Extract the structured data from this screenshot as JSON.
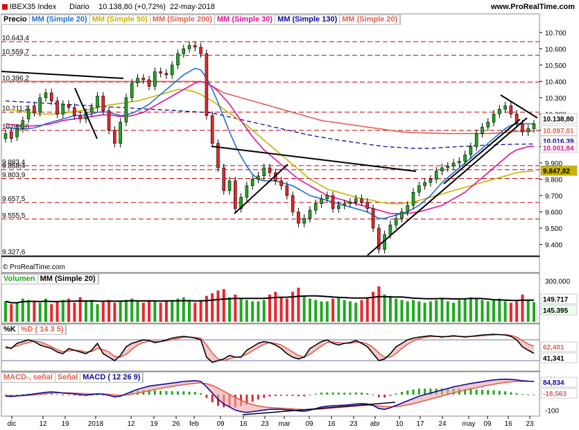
{
  "header": {
    "symbol": "IBEX35 Index",
    "period": "Diario",
    "last": "10.138,80 (+0,72%)",
    "date": "22-may-2018",
    "site": "www.ProRealTime.com"
  },
  "price_legend": [
    {
      "label": "Precio",
      "color": "#000000"
    },
    {
      "label": "MM (Simple 20)",
      "color": "#1f6fd6"
    },
    {
      "label": "MM (Simple 50)",
      "color": "#c8b400"
    },
    {
      "label": "MM (Simple 200)",
      "color": "#e06050"
    },
    {
      "label": "MM (Simple 30)",
      "color": "#e0109b"
    },
    {
      "label": "MM (Simple 130)",
      "color": "#0a0a9e"
    },
    {
      "label": "MM (Simple 20)",
      "color": "#e06050"
    }
  ],
  "vol_legend": [
    {
      "label": "Volumen",
      "color": "#1fa81f"
    },
    {
      "label": "MM (Simple 20)",
      "color": "#000000"
    }
  ],
  "sto_legend": [
    {
      "label": "%K",
      "color": "#000000"
    },
    {
      "label": "%D ( 14 3 5)",
      "color": "#e06050"
    }
  ],
  "macd_legend": [
    {
      "label": "MACD-, señal",
      "color": "#e06050"
    },
    {
      "label": "Señal",
      "color": "#e06050"
    },
    {
      "label": "MACD ( 12 26 9)",
      "color": "#0a0a9e"
    }
  ],
  "copyright": "© ProRealTime.com",
  "colors": {
    "up": "#1fa81f",
    "down": "#e8262b",
    "sma20": "#1f6fd6",
    "sma50": "#c8b400",
    "sma200": "#e06050",
    "sma30": "#e0109b",
    "sma130": "#0a0a9e",
    "grid": "#c00000"
  },
  "chart_data": {
    "type": "candlestick",
    "price_axis": {
      "ylim": [
        9300,
        10780
      ],
      "ticks": [
        "10.700",
        "10.600",
        "10.500",
        "10.400",
        "10.300",
        "10.200",
        "10.100",
        "10.000",
        "9.900",
        "9.800",
        "9.700",
        "9.600",
        "9.500",
        "9.400"
      ]
    },
    "level_labels": [
      "10.643,4",
      "10.559,7",
      "10.396,2",
      "10.211,2",
      "10.099,8",
      "9.883,4",
      "9.858,4",
      "9.803,9",
      "9.657,5",
      "9.555,5",
      "9.327,6"
    ],
    "tags": {
      "price": "10.138,80",
      "sma200": "10.097,01",
      "sma130": "10.016,39",
      "sma30": "10.001,84",
      "sma50": "9.847,82"
    },
    "x_labels": [
      "dic",
      "12",
      "19",
      "2018",
      "12",
      "19",
      "26",
      "feb",
      "09",
      "16",
      "23",
      "mar",
      "09",
      "16",
      "23",
      "abr",
      "10",
      "17",
      "24",
      "may",
      "09",
      "16",
      "23"
    ],
    "closes": [
      10080,
      10050,
      10110,
      10160,
      10230,
      10210,
      10300,
      10330,
      10280,
      10200,
      10260,
      10240,
      10190,
      10170,
      10210,
      10240,
      10310,
      10220,
      10100,
      10020,
      10150,
      10300,
      10390,
      10420,
      10410,
      10370,
      10460,
      10450,
      10440,
      10500,
      10570,
      10600,
      10620,
      10610,
      10570,
      10190,
      10020,
      9870,
      9730,
      9790,
      9620,
      9690,
      9760,
      9800,
      9820,
      9870,
      9840,
      9790,
      9760,
      9700,
      9600,
      9530,
      9560,
      9610,
      9650,
      9680,
      9700,
      9620,
      9640,
      9650,
      9660,
      9680,
      9660,
      9620,
      9500,
      9370,
      9460,
      9520,
      9560,
      9600,
      9640,
      9720,
      9760,
      9780,
      9800,
      9850,
      9870,
      9880,
      9900,
      9910,
      9950,
      10000,
      10080,
      10120,
      10150,
      10200,
      10230,
      10250,
      10200,
      10140,
      10090,
      10110,
      10140
    ],
    "opens": [
      10050,
      10090,
      10060,
      10110,
      10170,
      10250,
      10210,
      10300,
      10330,
      10280,
      10200,
      10260,
      10240,
      10190,
      10170,
      10210,
      10240,
      10310,
      10220,
      10100,
      10020,
      10150,
      10300,
      10390,
      10420,
      10410,
      10370,
      10460,
      10450,
      10440,
      10500,
      10570,
      10600,
      10620,
      10610,
      10570,
      10190,
      10020,
      9870,
      9730,
      9790,
      9620,
      9690,
      9760,
      9800,
      9820,
      9870,
      9840,
      9790,
      9760,
      9700,
      9600,
      9530,
      9560,
      9610,
      9650,
      9680,
      9700,
      9620,
      9640,
      9650,
      9660,
      9680,
      9660,
      9620,
      9500,
      9370,
      9460,
      9520,
      9560,
      9600,
      9640,
      9720,
      9760,
      9780,
      9800,
      9850,
      9870,
      9880,
      9900,
      9910,
      9950,
      10000,
      10080,
      10120,
      10150,
      10200,
      10230,
      10250,
      10200,
      10140,
      10090,
      10110
    ],
    "sma20": [
      10120,
      10115,
      10110,
      10108,
      10110,
      10115,
      10125,
      10140,
      10150,
      10160,
      10170,
      10180,
      10190,
      10190,
      10195,
      10200,
      10210,
      10215,
      10210,
      10200,
      10190,
      10195,
      10205,
      10220,
      10240,
      10260,
      10290,
      10320,
      10350,
      10380,
      10410,
      10440,
      10460,
      10480,
      10470,
      10420,
      10350,
      10270,
      10180,
      10090,
      10010,
      9940,
      9880,
      9830,
      9800,
      9790,
      9790,
      9790,
      9780,
      9770,
      9760,
      9740,
      9720,
      9700,
      9690,
      9680,
      9670,
      9660,
      9650,
      9640,
      9630,
      9620,
      9610,
      9600,
      9580,
      9560,
      9560,
      9570,
      9580,
      9590,
      9600,
      9620,
      9640,
      9670,
      9700,
      9740,
      9780,
      9810,
      9840,
      9870,
      9900,
      9930,
      9960,
      9990,
      10020,
      10050,
      10080,
      10110,
      10130,
      10140,
      10140,
      10140,
      10140
    ],
    "sma50": [
      10230,
      10225,
      10220,
      10215,
      10210,
      10205,
      10200,
      10200,
      10200,
      10200,
      10205,
      10210,
      10215,
      10220,
      10225,
      10230,
      10240,
      10250,
      10255,
      10260,
      10265,
      10270,
      10275,
      10280,
      10290,
      10300,
      10310,
      10320,
      10330,
      10340,
      10350,
      10350,
      10345,
      10335,
      10320,
      10300,
      10280,
      10255,
      10230,
      10205,
      10180,
      10155,
      10130,
      10100,
      10070,
      10040,
      10010,
      9980,
      9950,
      9920,
      9890,
      9860,
      9830,
      9800,
      9780,
      9760,
      9740,
      9730,
      9720,
      9710,
      9700,
      9690,
      9680,
      9675,
      9670,
      9660,
      9655,
      9650,
      9650,
      9650,
      9655,
      9660,
      9670,
      9680,
      9690,
      9700,
      9710,
      9720,
      9730,
      9740,
      9750,
      9760,
      9770,
      9780,
      9790,
      9800,
      9810,
      9820,
      9830,
      9840,
      9845,
      9848,
      9850
    ],
    "sma200": [
      10400,
      10400,
      10400,
      10400,
      10400,
      10400,
      10400,
      10400,
      10400,
      10400,
      10400,
      10400,
      10400,
      10400,
      10400,
      10400,
      10400,
      10400,
      10400,
      10400,
      10400,
      10400,
      10400,
      10400,
      10400,
      10400,
      10400,
      10400,
      10400,
      10400,
      10400,
      10400,
      10400,
      10400,
      10400,
      10390,
      10370,
      10350,
      10330,
      10320,
      10310,
      10300,
      10290,
      10280,
      10270,
      10260,
      10250,
      10240,
      10230,
      10220,
      10210,
      10200,
      10190,
      10180,
      10170,
      10160,
      10155,
      10150,
      10145,
      10140,
      10135,
      10130,
      10125,
      10120,
      10115,
      10110,
      10105,
      10100,
      10095,
      10090,
      10088,
      10086,
      10085,
      10084,
      10083,
      10082,
      10081,
      10080,
      10080,
      10080,
      10080,
      10080,
      10080,
      10080,
      10081,
      10082,
      10084,
      10086,
      10090,
      10093,
      10095,
      10096,
      10097
    ],
    "sma30": [
      10140,
      10135,
      10130,
      10125,
      10125,
      10128,
      10130,
      10135,
      10140,
      10150,
      10160,
      10165,
      10170,
      10175,
      10180,
      10185,
      10190,
      10195,
      10195,
      10190,
      10185,
      10185,
      10190,
      10200,
      10210,
      10230,
      10250,
      10270,
      10290,
      10310,
      10330,
      10350,
      10370,
      10390,
      10400,
      10390,
      10370,
      10340,
      10300,
      10260,
      10210,
      10160,
      10110,
      10060,
      10020,
      9980,
      9950,
      9920,
      9890,
      9860,
      9830,
      9800,
      9780,
      9760,
      9740,
      9720,
      9700,
      9690,
      9680,
      9670,
      9660,
      9650,
      9640,
      9630,
      9620,
      9610,
      9600,
      9590,
      9590,
      9590,
      9590,
      9595,
      9600,
      9610,
      9620,
      9630,
      9640,
      9660,
      9680,
      9700,
      9720,
      9750,
      9780,
      9810,
      9840,
      9870,
      9900,
      9930,
      9960,
      9980,
      9990,
      10000,
      10002
    ],
    "sma130": [
      10280,
      10278,
      10276,
      10274,
      10272,
      10270,
      10268,
      10266,
      10264,
      10262,
      10260,
      10258,
      10256,
      10254,
      10252,
      10250,
      10248,
      10246,
      10244,
      10242,
      10240,
      10238,
      10236,
      10234,
      10232,
      10230,
      10228,
      10226,
      10224,
      10222,
      10220,
      10218,
      10216,
      10214,
      10212,
      10210,
      10205,
      10198,
      10190,
      10182,
      10174,
      10166,
      10158,
      10150,
      10142,
      10134,
      10126,
      10118,
      10110,
      10102,
      10094,
      10086,
      10078,
      10070,
      10064,
      10058,
      10052,
      10046,
      10040,
      10035,
      10030,
      10025,
      10020,
      10015,
      10010,
      10005,
      10000,
      9998,
      9996,
      9994,
      9992,
      9990,
      9990,
      9990,
      9990,
      9992,
      9994,
      9996,
      9998,
      10000,
      10002,
      10004,
      10006,
      10008,
      10010,
      10011,
      10012,
      10013,
      10014,
      10015,
      10015,
      10016,
      10016
    ],
    "volume_axis": {
      "ticks": [
        "300.000"
      ],
      "tags": {
        "sma": "149.717",
        "vol": "145.395"
      }
    },
    "volumes": [
      150,
      130,
      140,
      170,
      160,
      150,
      140,
      170,
      130,
      150,
      160,
      170,
      140,
      180,
      150,
      160,
      130,
      150,
      160,
      140,
      150,
      160,
      170,
      150,
      140,
      160,
      150,
      140,
      150,
      160,
      170,
      180,
      150,
      140,
      160,
      190,
      210,
      230,
      240,
      180,
      200,
      170,
      160,
      150,
      150,
      160,
      200,
      220,
      180,
      170,
      220,
      250,
      190,
      170,
      160,
      150,
      150,
      170,
      180,
      160,
      150,
      140,
      160,
      180,
      220,
      260,
      200,
      190,
      170,
      160,
      150,
      160,
      150,
      140,
      150,
      160,
      170,
      150,
      140,
      160,
      170,
      180,
      170,
      160,
      150,
      160,
      170,
      150,
      140,
      150,
      200,
      160,
      145
    ],
    "stochastic_axis": {
      "tags": {
        "d": "62,401",
        "k": "41,341"
      }
    },
    "stoch_k": [
      60,
      55,
      70,
      75,
      80,
      75,
      65,
      60,
      55,
      45,
      40,
      55,
      50,
      45,
      40,
      50,
      70,
      40,
      30,
      20,
      35,
      60,
      70,
      75,
      80,
      78,
      72,
      75,
      80,
      85,
      88,
      90,
      88,
      85,
      80,
      30,
      15,
      20,
      25,
      35,
      30,
      30,
      50,
      60,
      70,
      75,
      72,
      65,
      55,
      40,
      30,
      25,
      30,
      55,
      65,
      75,
      80,
      70,
      65,
      70,
      72,
      78,
      70,
      60,
      40,
      20,
      25,
      40,
      60,
      70,
      80,
      85,
      88,
      90,
      92,
      90,
      88,
      90,
      92,
      90,
      88,
      90,
      92,
      94,
      95,
      96,
      95,
      94,
      90,
      80,
      60,
      50,
      41
    ],
    "stoch_d": [
      55,
      58,
      62,
      68,
      72,
      76,
      74,
      68,
      60,
      52,
      46,
      48,
      50,
      49,
      45,
      46,
      55,
      52,
      45,
      32,
      30,
      38,
      52,
      65,
      72,
      76,
      76,
      75,
      77,
      80,
      84,
      87,
      88,
      87,
      85,
      65,
      42,
      25,
      20,
      25,
      30,
      32,
      38,
      48,
      58,
      67,
      72,
      70,
      65,
      55,
      45,
      35,
      30,
      38,
      50,
      62,
      72,
      74,
      72,
      70,
      70,
      73,
      73,
      68,
      58,
      42,
      30,
      30,
      40,
      55,
      67,
      77,
      83,
      87,
      89,
      90,
      90,
      89,
      90,
      90,
      90,
      90,
      90,
      92,
      93,
      94,
      95,
      95,
      93,
      88,
      78,
      68,
      62
    ],
    "macd_axis": {
      "ticks": [
        "100",
        "-100"
      ],
      "tags": {
        "macd": "84,834",
        "hist": "-18,563"
      }
    },
    "macd": [
      -10,
      -12,
      -8,
      -5,
      0,
      5,
      10,
      15,
      18,
      15,
      10,
      8,
      5,
      0,
      -3,
      0,
      5,
      3,
      -5,
      -15,
      -10,
      5,
      20,
      35,
      45,
      55,
      60,
      65,
      70,
      75,
      80,
      85,
      88,
      90,
      85,
      50,
      10,
      -30,
      -60,
      -80,
      -100,
      -110,
      -115,
      -110,
      -105,
      -100,
      -95,
      -95,
      -95,
      -98,
      -100,
      -105,
      -108,
      -100,
      -90,
      -80,
      -75,
      -72,
      -70,
      -68,
      -65,
      -60,
      -58,
      -60,
      -70,
      -90,
      -95,
      -85,
      -70,
      -55,
      -40,
      -25,
      -10,
      0,
      10,
      20,
      30,
      40,
      50,
      58,
      65,
      72,
      78,
      84,
      90,
      95,
      98,
      100,
      98,
      95,
      90,
      87,
      85
    ],
    "macd_signal": [
      -5,
      -7,
      -8,
      -7,
      -5,
      -2,
      2,
      6,
      10,
      12,
      12,
      11,
      10,
      8,
      6,
      5,
      5,
      4,
      2,
      -2,
      -4,
      -2,
      3,
      10,
      17,
      25,
      33,
      40,
      47,
      53,
      59,
      64,
      69,
      73,
      76,
      71,
      59,
      42,
      22,
      2,
      -18,
      -36,
      -52,
      -64,
      -73,
      -79,
      -83,
      -86,
      -88,
      -90,
      -92,
      -94,
      -97,
      -97,
      -96,
      -93,
      -89,
      -86,
      -83,
      -80,
      -77,
      -74,
      -71,
      -69,
      -69,
      -73,
      -77,
      -78,
      -77,
      -73,
      -67,
      -59,
      -49,
      -39,
      -29,
      -19,
      -9,
      1,
      11,
      20,
      29,
      37,
      45,
      53,
      60,
      67,
      73,
      79,
      83,
      85,
      86,
      86,
      86
    ]
  }
}
